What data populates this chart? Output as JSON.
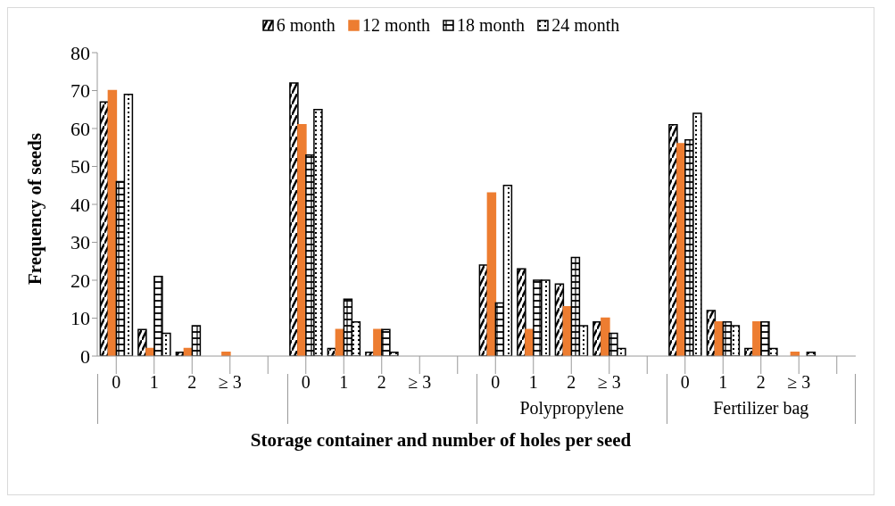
{
  "chart_data": {
    "type": "bar",
    "xlabel": "Storage container and number of holes per seed",
    "ylabel": "Frequency of seeds",
    "categories": [
      "0",
      "1",
      "2",
      "≥ 3",
      null,
      "0",
      "1",
      "2",
      "≥ 3",
      null,
      "0",
      "1",
      "2",
      "≥ 3",
      null,
      "0",
      "1",
      "2",
      "≥ 3",
      null
    ],
    "series": [
      {
        "name": "6 month",
        "color": "#000000",
        "values": [
          67,
          7,
          1,
          0,
          null,
          72,
          2,
          1,
          0,
          null,
          24,
          23,
          19,
          9,
          null,
          61,
          12,
          2,
          0,
          null
        ]
      },
      {
        "name": "12 month",
        "color": "#ed7d31",
        "values": [
          70,
          2,
          2,
          1,
          null,
          61,
          7,
          7,
          0,
          null,
          43,
          7,
          13,
          10,
          null,
          56,
          9,
          9,
          1,
          null
        ]
      },
      {
        "name": "18 month",
        "color": "#000000",
        "values": [
          46,
          21,
          8,
          0,
          null,
          53,
          15,
          7,
          0,
          null,
          14,
          20,
          26,
          6,
          null,
          57,
          9,
          9,
          0,
          null
        ]
      },
      {
        "name": "24 month",
        "color": "#000000",
        "values": [
          69,
          6,
          0,
          0,
          null,
          65,
          9,
          1,
          0,
          null,
          45,
          20,
          8,
          2,
          null,
          64,
          8,
          2,
          1,
          null
        ]
      }
    ],
    "annotations": [
      null,
      null,
      "Polypropylene",
      "Fertilizer bag"
    ],
    "ylim": [
      0,
      80
    ],
    "yticks": [
      0,
      10,
      20,
      30,
      40,
      50,
      60,
      70,
      80
    ],
    "legend": "top"
  }
}
